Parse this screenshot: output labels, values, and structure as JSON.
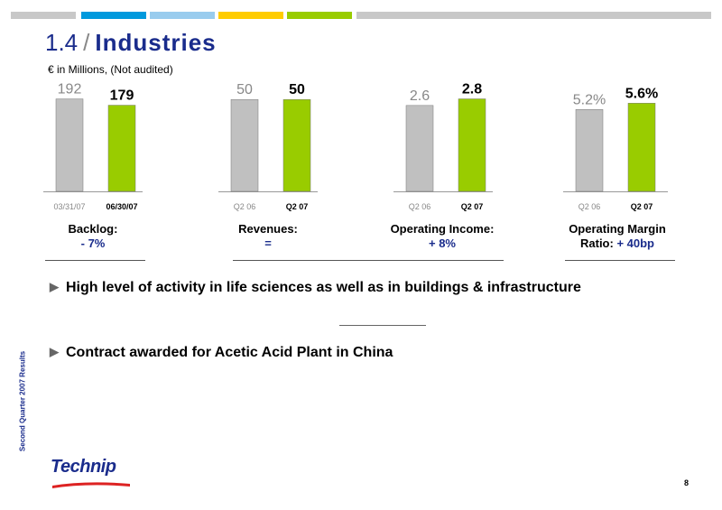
{
  "colors": {
    "gray_bar": "#c0c0c0",
    "green_bar": "#99cc00",
    "title_blue": "#1a2c8c",
    "top_gray": "#c8c8c8",
    "top_blue": "#0099dd",
    "top_lightblue": "#99ccee",
    "top_yellow": "#ffcc00",
    "top_green": "#99cc00"
  },
  "header": {
    "number": "1.4",
    "separator": "/",
    "word": "Industries",
    "subtitle": "€ in Millions, (Not audited)"
  },
  "chart_data": [
    {
      "type": "bar",
      "categories": [
        "03/31/07",
        "06/30/07"
      ],
      "values": [
        192,
        179
      ],
      "value_labels": [
        "192",
        "179"
      ],
      "ylim": [
        0,
        210
      ],
      "label_line1": "Backlog:",
      "label_line2": "- 7%"
    },
    {
      "type": "bar",
      "categories": [
        "Q2 06",
        "Q2 07"
      ],
      "values": [
        50,
        50
      ],
      "value_labels": [
        "50",
        "50"
      ],
      "ylim": [
        0,
        55
      ],
      "label_line1": "Revenues:",
      "label_line2": "="
    },
    {
      "type": "bar",
      "categories": [
        "Q2 06",
        "Q2 07"
      ],
      "values": [
        2.6,
        2.8
      ],
      "value_labels": [
        "2.6",
        "2.8"
      ],
      "ylim": [
        0,
        3.06
      ],
      "label_line1": "Operating Income:",
      "label_line2": "+ 8%"
    },
    {
      "type": "bar",
      "categories": [
        "Q2 06",
        "Q2 07"
      ],
      "values": [
        5.2,
        5.6
      ],
      "value_labels": [
        "5.2%",
        "5.6%"
      ],
      "ylim": [
        0,
        6.42
      ],
      "label_line1": "Operating Margin",
      "label_line2_prefix": "Ratio: ",
      "label_line2": "+ 40bp"
    }
  ],
  "bullets": [
    "High level of activity in life sciences as well as in buildings & infrastructure",
    "Contract awarded for Acetic Acid Plant in China"
  ],
  "footer": {
    "side_text": "Second Quarter 2007 Results",
    "logo_text": "Technip",
    "page_number": "8"
  }
}
